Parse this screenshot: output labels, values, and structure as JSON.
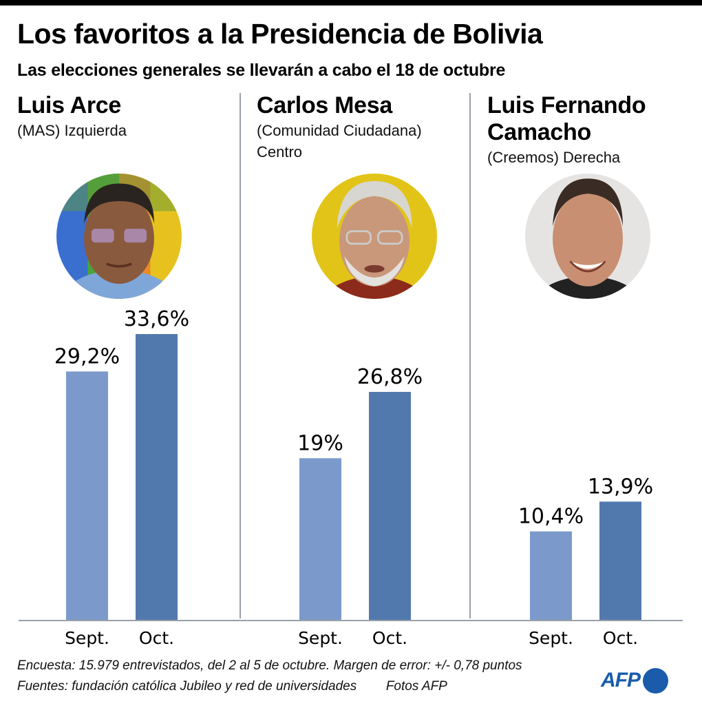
{
  "header": {
    "title": "Los favoritos a la Presidencia de Bolivia",
    "subtitle": "Las elecciones generales se llevarán a cabo el 18 de octubre"
  },
  "candidates": [
    {
      "name_lines": [
        "Luis Arce"
      ],
      "party_lines": [
        "(MAS) Izquierda"
      ],
      "photo": "photo-luis-arce",
      "photo_bg": "#6a9e3a"
    },
    {
      "name_lines": [
        "Carlos Mesa"
      ],
      "party_lines": [
        "(Comunidad Ciudadana)",
        "Centro"
      ],
      "photo": "photo-carlos-mesa",
      "photo_bg": "#e2c418"
    },
    {
      "name_lines": [
        "Luis Fernando",
        "Camacho"
      ],
      "party_lines": [
        "(Creemos) Derecha"
      ],
      "photo": "photo-luis-fernando-camacho",
      "photo_bg": "#e6e4e2"
    }
  ],
  "colors": {
    "sept_bar": "#7b9acb",
    "oct_bar": "#5279ae",
    "axis": "#9aa0a8",
    "brand": "#1a5cab"
  },
  "chart_data": {
    "type": "bar",
    "title": "Los favoritos a la Presidencia de Bolivia",
    "subtitle": "Las elecciones generales se llevarán a cabo el 18 de octubre",
    "xlabel": "",
    "ylabel": "",
    "unit": "%",
    "grid": false,
    "legend": "none",
    "ylim": [
      0,
      35
    ],
    "groups": [
      "Luis Arce",
      "Carlos Mesa",
      "Luis Fernando Camacho"
    ],
    "categories": [
      "Sept.",
      "Oct."
    ],
    "series": [
      {
        "name": "Luis Arce",
        "values": [
          29.2,
          33.6
        ],
        "labels": [
          "29,2%",
          "33,6%"
        ]
      },
      {
        "name": "Carlos Mesa",
        "values": [
          19,
          26.8
        ],
        "labels": [
          "19%",
          "26,8%"
        ]
      },
      {
        "name": "Luis Fernando Camacho",
        "values": [
          10.4,
          13.9
        ],
        "labels": [
          "10,4%",
          "13,9%"
        ]
      }
    ]
  },
  "footer": {
    "note": "Encuesta: 15.979 entrevistados, del 2 al 5 de octubre. Margen de error: +/- 0,78 puntos",
    "sources": "Fuentes: fundación católica Jubileo y red de universidades",
    "photo_credit": "Fotos AFP",
    "logo_text": "AFP"
  }
}
